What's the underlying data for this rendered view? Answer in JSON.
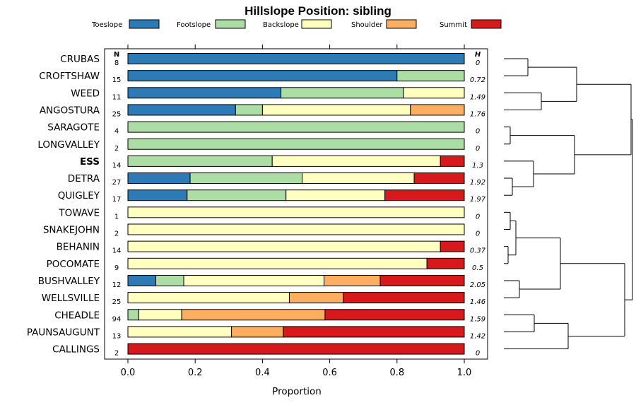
{
  "chart_data": {
    "type": "bar",
    "stacked": true,
    "orientation": "horizontal",
    "title": "Hillslope Position: sibling",
    "xlabel": "Proportion",
    "xlim": [
      0,
      1
    ],
    "xticks": [
      "0.0",
      "0.2",
      "0.4",
      "0.6",
      "0.8",
      "1.0"
    ],
    "n_header": "N",
    "h_header": "H",
    "legend": [
      {
        "name": "Toeslope",
        "color": "#2c7bb6"
      },
      {
        "name": "Footslope",
        "color": "#abdda4"
      },
      {
        "name": "Backslope",
        "color": "#ffffbf"
      },
      {
        "name": "Shoulder",
        "color": "#fdae61"
      },
      {
        "name": "Summit",
        "color": "#d7191c"
      }
    ],
    "rows": [
      {
        "name": "CRUBAS",
        "n": "8",
        "h": "0",
        "values": [
          1.0,
          0,
          0,
          0,
          0
        ]
      },
      {
        "name": "CROFTSHAW",
        "n": "15",
        "h": "0.72",
        "values": [
          0.8,
          0.2,
          0,
          0,
          0
        ]
      },
      {
        "name": "WEED",
        "n": "11",
        "h": "1.49",
        "values": [
          0.455,
          0.364,
          0.181,
          0,
          0
        ]
      },
      {
        "name": "ANGOSTURA",
        "n": "25",
        "h": "1.76",
        "values": [
          0.32,
          0.08,
          0.44,
          0.16,
          0
        ]
      },
      {
        "name": "SARAGOTE",
        "n": "4",
        "h": "0",
        "values": [
          0,
          1.0,
          0,
          0,
          0
        ]
      },
      {
        "name": "LONGVALLEY",
        "n": "2",
        "h": "0",
        "values": [
          0,
          1.0,
          0,
          0,
          0
        ]
      },
      {
        "name": "ESS",
        "n": "14",
        "h": "1.3",
        "bold": true,
        "values": [
          0,
          0.429,
          0.5,
          0,
          0.071
        ]
      },
      {
        "name": "DETRA",
        "n": "27",
        "h": "1.92",
        "values": [
          0.185,
          0.333,
          0.333,
          0,
          0.149
        ]
      },
      {
        "name": "QUIGLEY",
        "n": "17",
        "h": "1.97",
        "values": [
          0.176,
          0.294,
          0.294,
          0,
          0.236
        ]
      },
      {
        "name": "TOWAVE",
        "n": "1",
        "h": "0",
        "values": [
          0,
          0,
          1.0,
          0,
          0
        ]
      },
      {
        "name": "SNAKEJOHN",
        "n": "2",
        "h": "0",
        "values": [
          0,
          0,
          1.0,
          0,
          0
        ]
      },
      {
        "name": "BEHANIN",
        "n": "14",
        "h": "0.37",
        "values": [
          0,
          0,
          0.929,
          0,
          0.071
        ]
      },
      {
        "name": "POCOMATE",
        "n": "9",
        "h": "0.5",
        "values": [
          0,
          0,
          0.889,
          0,
          0.111
        ]
      },
      {
        "name": "BUSHVALLEY",
        "n": "12",
        "h": "2.05",
        "values": [
          0.083,
          0.083,
          0.417,
          0.167,
          0.25
        ]
      },
      {
        "name": "WELLSVILLE",
        "n": "25",
        "h": "1.46",
        "values": [
          0,
          0,
          0.48,
          0.16,
          0.36
        ]
      },
      {
        "name": "CHEADLE",
        "n": "94",
        "h": "1.59",
        "values": [
          0,
          0.032,
          0.128,
          0.426,
          0.414
        ]
      },
      {
        "name": "PAUNSAUGUNT",
        "n": "13",
        "h": "1.42",
        "values": [
          0,
          0,
          0.308,
          0.154,
          0.538
        ]
      },
      {
        "name": "CALLINGS",
        "n": "2",
        "h": "0",
        "values": [
          0,
          0,
          0,
          0,
          1.0
        ]
      }
    ]
  }
}
